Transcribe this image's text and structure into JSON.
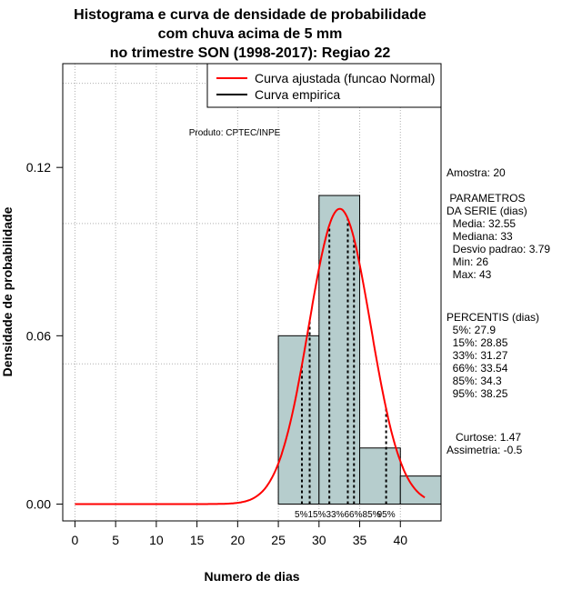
{
  "chart_data": {
    "type": "histogram",
    "title_lines": [
      "Histograma e curva de densidade de probabilidade",
      "com chuva acima de 5 mm",
      "no trimestre SON (1998-2017): Regiao 22"
    ],
    "xlabel": "Numero de dias",
    "ylabel": "Densidade de probabilidade",
    "xlim": [
      -1.5,
      45
    ],
    "ylim": [
      -0.006,
      0.157
    ],
    "x_ticks": [
      0,
      5,
      10,
      15,
      20,
      25,
      30,
      35,
      40
    ],
    "y_ticks": [
      0.0,
      0.06,
      0.12
    ],
    "y_tick_labels": [
      "0.00",
      "0.06",
      "0.12"
    ],
    "grid_y": [
      0.05,
      0.1,
      0.15
    ],
    "bins": [
      {
        "start": 25,
        "end": 30,
        "density": 0.06
      },
      {
        "start": 30,
        "end": 35,
        "density": 0.11
      },
      {
        "start": 35,
        "end": 40,
        "density": 0.02
      },
      {
        "start": 40,
        "end": 45,
        "density": 0.01
      }
    ],
    "fitted_curve": {
      "name": "Curva ajustada (funcao Normal)",
      "mean": 32.55,
      "sd": 3.79,
      "x_from": 0,
      "x_to": 43,
      "color": "#ff0000"
    },
    "empirical_curve": {
      "name": "Curva empirica",
      "color": "#000000"
    },
    "percentile_lines": [
      {
        "label": "5%",
        "x": 27.9
      },
      {
        "label": "15%",
        "x": 28.85
      },
      {
        "label": "33%",
        "x": 31.27
      },
      {
        "label": "66%",
        "x": 33.54
      },
      {
        "label": "85%",
        "x": 34.3
      },
      {
        "label": "95%",
        "x": 38.25
      }
    ],
    "percentile_axis_text": {
      "low": "5%15%33%66%85%",
      "high": "95%"
    },
    "legend_position": "top-right",
    "bar_color": "#b6cdcd",
    "annotation": "Produto: CPTEC/INPE"
  },
  "stats": {
    "amostra": "Amostra: 20",
    "parametros_title": " PARAMETROS\nDA SERIE (dias)",
    "parametros": "  Media: 32.55\n  Mediana: 33\n  Desvio padrao: 3.79\n  Min: 26\n  Max: 43",
    "percentis": "PERCENTIS (dias)\n  5%: 27.9\n  15%: 28.85\n  33%: 31.27\n  66%: 33.54\n  85%: 34.3\n  95%: 38.25",
    "shape": "   Curtose: 1.47\nAssimetria: -0.5"
  }
}
